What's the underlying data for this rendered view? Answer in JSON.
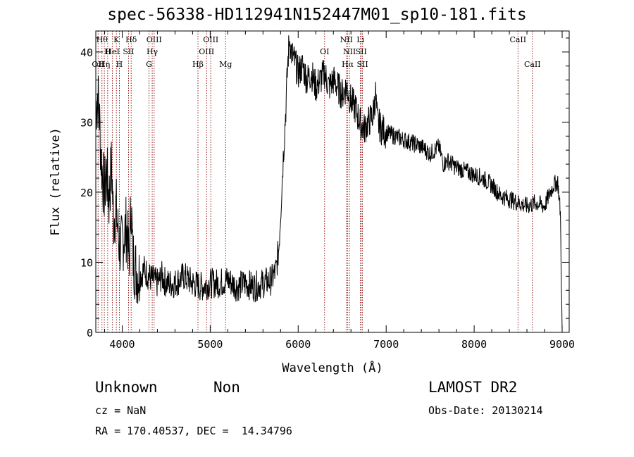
{
  "title": "spec-56338-HD112941N152447M01_sp10-181.fits",
  "chart_data": {
    "type": "line",
    "xlabel": "Wavelength (Å)",
    "ylabel": "Flux (relative)",
    "xlim": [
      3700,
      9080
    ],
    "ylim": [
      0,
      43
    ],
    "xticks": [
      4000,
      5000,
      6000,
      7000,
      8000,
      9000
    ],
    "yticks": [
      0,
      10,
      20,
      30,
      40
    ],
    "grid": false,
    "series": [
      {
        "points": [
          [
            3700,
            32
          ],
          [
            3720,
            34
          ],
          [
            3740,
            31
          ],
          [
            3760,
            25
          ],
          [
            3780,
            22
          ],
          [
            3800,
            20
          ],
          [
            3820,
            23
          ],
          [
            3850,
            19
          ],
          [
            3880,
            24
          ],
          [
            3900,
            16
          ],
          [
            3930,
            18
          ],
          [
            3960,
            13
          ],
          [
            3990,
            12
          ],
          [
            4020,
            14
          ],
          [
            4050,
            15
          ],
          [
            4080,
            10
          ],
          [
            4100,
            19
          ],
          [
            4120,
            11
          ],
          [
            4150,
            9
          ],
          [
            4200,
            8
          ],
          [
            4250,
            9
          ],
          [
            4300,
            8
          ],
          [
            4350,
            7.5
          ],
          [
            4400,
            7
          ],
          [
            4450,
            8
          ],
          [
            4500,
            7
          ],
          [
            4600,
            7
          ],
          [
            4700,
            8
          ],
          [
            4800,
            7
          ],
          [
            4900,
            6.5
          ],
          [
            5000,
            7
          ],
          [
            5100,
            7
          ],
          [
            5200,
            7.5
          ],
          [
            5300,
            6.5
          ],
          [
            5400,
            7
          ],
          [
            5500,
            6.5
          ],
          [
            5600,
            7
          ],
          [
            5700,
            7.5
          ],
          [
            5750,
            9
          ],
          [
            5780,
            12
          ],
          [
            5800,
            17
          ],
          [
            5830,
            25
          ],
          [
            5860,
            32
          ],
          [
            5880,
            38
          ],
          [
            5900,
            42
          ],
          [
            5920,
            40
          ],
          [
            5950,
            39
          ],
          [
            6000,
            37
          ],
          [
            6050,
            38
          ],
          [
            6100,
            36
          ],
          [
            6150,
            37
          ],
          [
            6200,
            35
          ],
          [
            6250,
            36
          ],
          [
            6300,
            37
          ],
          [
            6350,
            35
          ],
          [
            6400,
            36
          ],
          [
            6450,
            35
          ],
          [
            6500,
            34
          ],
          [
            6550,
            35
          ],
          [
            6600,
            33
          ],
          [
            6650,
            32
          ],
          [
            6700,
            30
          ],
          [
            6750,
            29
          ],
          [
            6800,
            30
          ],
          [
            6850,
            31
          ],
          [
            6880,
            34
          ],
          [
            6900,
            30
          ],
          [
            6950,
            29
          ],
          [
            7000,
            28.5
          ],
          [
            7100,
            28
          ],
          [
            7200,
            27.5
          ],
          [
            7300,
            27
          ],
          [
            7400,
            26.5
          ],
          [
            7500,
            25.5
          ],
          [
            7600,
            26.5
          ],
          [
            7650,
            24
          ],
          [
            7700,
            24.5
          ],
          [
            7800,
            23.5
          ],
          [
            7900,
            23
          ],
          [
            8000,
            22.5
          ],
          [
            8100,
            22
          ],
          [
            8200,
            21
          ],
          [
            8300,
            19.5
          ],
          [
            8400,
            19
          ],
          [
            8500,
            18.5
          ],
          [
            8600,
            18
          ],
          [
            8700,
            18.5
          ],
          [
            8800,
            18
          ],
          [
            8900,
            21
          ],
          [
            8950,
            21.5
          ],
          [
            8980,
            17
          ],
          [
            9000,
            0
          ]
        ]
      }
    ],
    "lines": [
      {
        "x": 3726,
        "label": "OII",
        "row": 3
      },
      {
        "x": 3770,
        "label": "Hθ",
        "row": 1
      },
      {
        "x": 3797,
        "label": "Hη",
        "row": 3
      },
      {
        "x": 3835,
        "label": "H",
        "row": 2
      },
      {
        "x": 3889,
        "label": "HeI",
        "row": 2
      },
      {
        "x": 3934,
        "label": "K",
        "row": 1
      },
      {
        "x": 3968,
        "label": "H",
        "row": 3
      },
      {
        "x": 4072,
        "label": "SII",
        "row": 2
      },
      {
        "x": 4102,
        "label": "Hδ",
        "row": 1
      },
      {
        "x": 4305,
        "label": "G",
        "row": 3
      },
      {
        "x": 4341,
        "label": "Hγ",
        "row": 2
      },
      {
        "x": 4363,
        "label": "OIII",
        "row": 1
      },
      {
        "x": 4861,
        "label": "Hβ",
        "row": 3
      },
      {
        "x": 4959,
        "label": "OIII",
        "row": 2
      },
      {
        "x": 5007,
        "label": "OIII",
        "row": 1
      },
      {
        "x": 5175,
        "label": "Mg",
        "row": 3
      },
      {
        "x": 6300,
        "label": "OI",
        "row": 2
      },
      {
        "x": 6548,
        "label": "NII",
        "row": 1
      },
      {
        "x": 6563,
        "label": "Hα",
        "row": 3
      },
      {
        "x": 6583,
        "label": "NII",
        "row": 2
      },
      {
        "x": 6708,
        "label": "Li",
        "row": 1
      },
      {
        "x": 6716,
        "label": "SII",
        "row": 2
      },
      {
        "x": 6731,
        "label": "SII",
        "row": 3
      },
      {
        "x": 8498,
        "label": "CaII",
        "row": 1
      },
      {
        "x": 8662,
        "label": "CaII",
        "row": 3
      }
    ]
  },
  "info": {
    "object_class": "Unknown",
    "subclass": "Non",
    "survey": "LAMOST DR2",
    "cz": "cz = NaN",
    "obs_date": "Obs-Date: 20130214",
    "coords": "RA = 170.40537, DEC =  14.34796"
  }
}
